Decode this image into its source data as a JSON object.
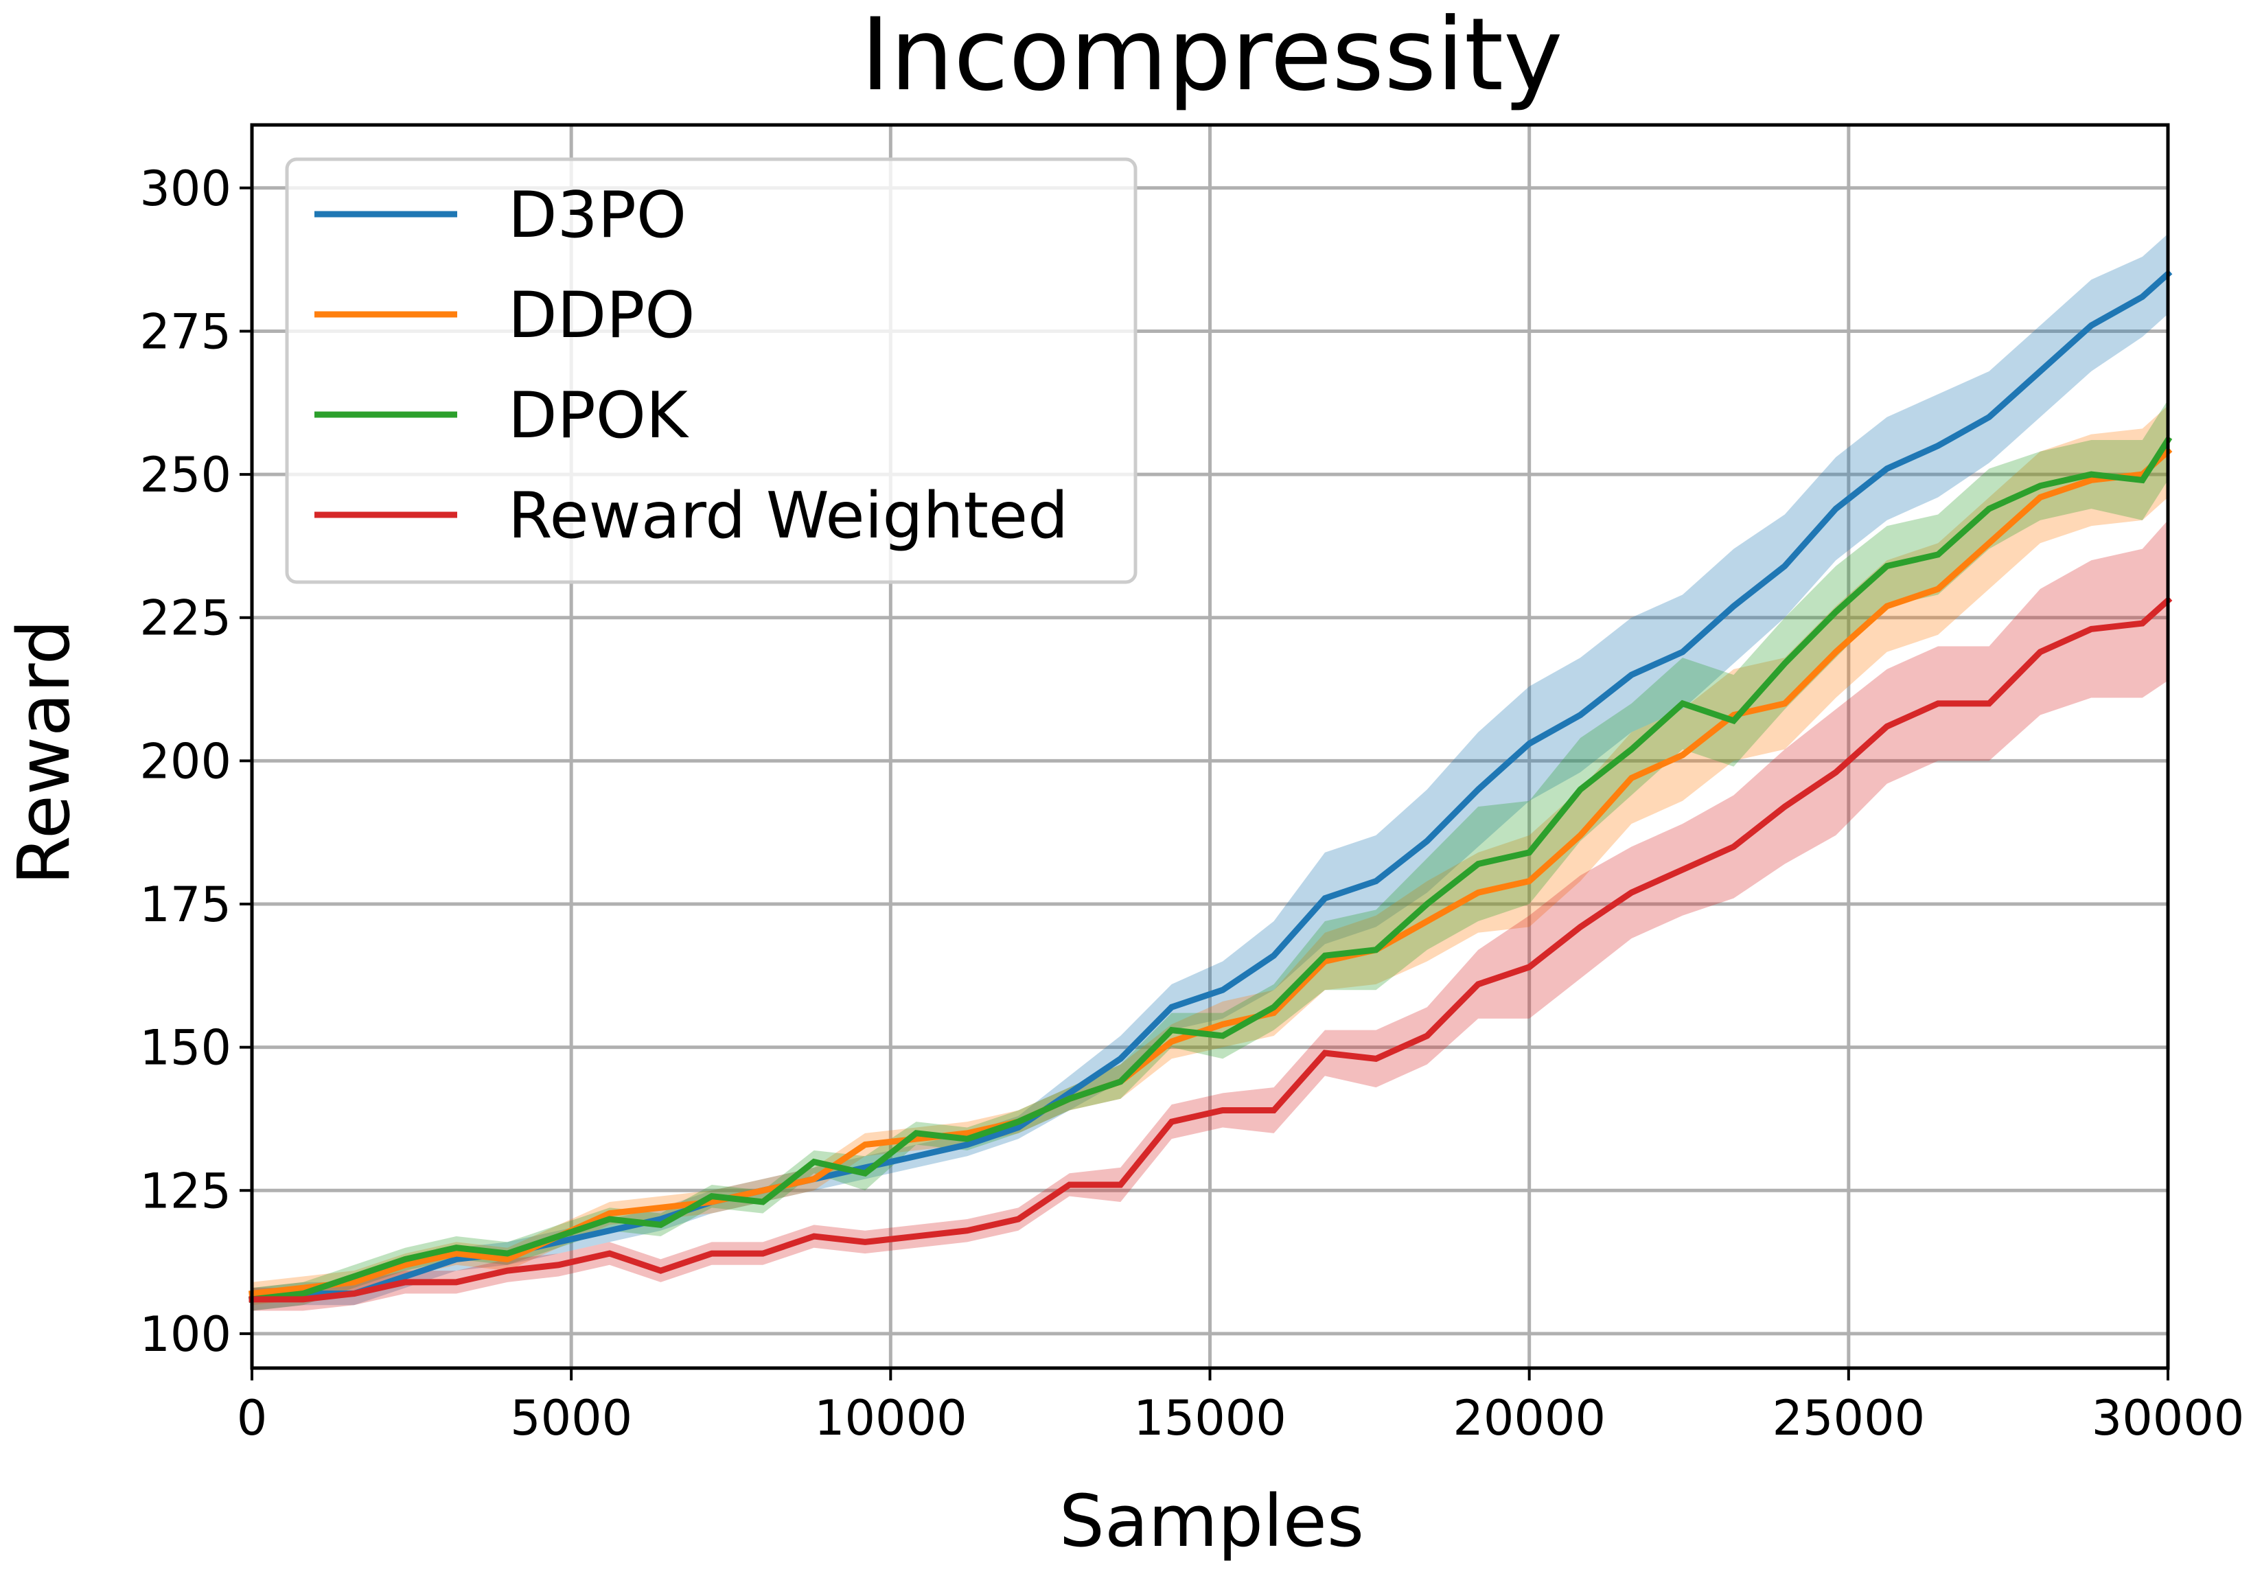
{
  "chart_data": {
    "type": "line",
    "title": "Incompressity",
    "xlabel": "Samples",
    "ylabel": "Reward",
    "xlim": [
      0,
      30000
    ],
    "ylim": [
      94,
      311
    ],
    "xticks": [
      0,
      5000,
      10000,
      15000,
      20000,
      25000,
      30000
    ],
    "yticks": [
      100,
      125,
      150,
      175,
      200,
      225,
      250,
      275,
      300
    ],
    "grid": true,
    "legend": "top-left",
    "x": [
      0,
      800,
      1600,
      2400,
      3200,
      4000,
      4800,
      5600,
      6400,
      7200,
      8000,
      8800,
      9600,
      10400,
      11200,
      12000,
      12800,
      13600,
      14400,
      15200,
      16000,
      16800,
      17600,
      18400,
      19200,
      20000,
      20800,
      21600,
      22400,
      23200,
      24000,
      24800,
      25600,
      26400,
      27200,
      28000,
      28800,
      29600,
      30000
    ],
    "series": [
      {
        "name": "D3PO",
        "color": "#1f77b4",
        "values": [
          106,
          107,
          107,
          110,
          113,
          114,
          116,
          118,
          120,
          123,
          125,
          127,
          129,
          131,
          133,
          136,
          142,
          148,
          157,
          160,
          166,
          176,
          179,
          186,
          195,
          203,
          208,
          215,
          219,
          227,
          234,
          244,
          251,
          255,
          260,
          268,
          276,
          281,
          285
        ],
        "band": [
          2,
          2,
          2,
          2,
          2,
          2,
          2,
          2,
          2,
          2,
          2,
          2,
          2,
          2,
          2,
          2,
          3,
          4,
          4,
          5,
          6,
          8,
          8,
          9,
          10,
          10,
          10,
          10,
          10,
          10,
          9,
          9,
          9,
          9,
          8,
          8,
          8,
          7,
          7
        ]
      },
      {
        "name": "DDPO",
        "color": "#ff7f0e",
        "values": [
          107,
          108,
          109,
          112,
          114,
          113,
          117,
          121,
          122,
          123,
          125,
          127,
          133,
          134,
          135,
          137,
          141,
          144,
          151,
          154,
          156,
          165,
          167,
          172,
          177,
          179,
          187,
          197,
          201,
          208,
          210,
          219,
          227,
          230,
          238,
          246,
          249,
          250,
          254
        ],
        "band": [
          2,
          2,
          2,
          2,
          2,
          2,
          2,
          2,
          2,
          2,
          2,
          2,
          2,
          2,
          2,
          2,
          2,
          3,
          3,
          4,
          4,
          5,
          6,
          7,
          7,
          8,
          8,
          8,
          8,
          8,
          8,
          8,
          8,
          8,
          8,
          8,
          8,
          8,
          8
        ]
      },
      {
        "name": "DPOK",
        "color": "#2ca02c",
        "values": [
          106,
          107,
          110,
          113,
          115,
          114,
          117,
          120,
          119,
          124,
          123,
          130,
          128,
          135,
          134,
          137,
          141,
          144,
          153,
          152,
          157,
          166,
          167,
          175,
          182,
          184,
          195,
          202,
          210,
          207,
          217,
          226,
          234,
          236,
          244,
          248,
          250,
          249,
          256
        ],
        "band": [
          2,
          2,
          2,
          2,
          2,
          2,
          2,
          2,
          2,
          2,
          2,
          2,
          3,
          2,
          2,
          2,
          2,
          3,
          3,
          4,
          4,
          6,
          7,
          8,
          10,
          9,
          9,
          8,
          8,
          8,
          8,
          8,
          7,
          7,
          7,
          6,
          6,
          7,
          7
        ]
      },
      {
        "name": "Reward Weighted",
        "color": "#d62728",
        "values": [
          106,
          106,
          107,
          109,
          109,
          111,
          112,
          114,
          111,
          114,
          114,
          117,
          116,
          117,
          118,
          120,
          126,
          126,
          137,
          139,
          139,
          149,
          148,
          152,
          161,
          164,
          171,
          177,
          181,
          185,
          192,
          198,
          206,
          210,
          210,
          219,
          223,
          224,
          228
        ],
        "band": [
          2,
          2,
          2,
          2,
          2,
          2,
          2,
          2,
          2,
          2,
          2,
          2,
          2,
          2,
          2,
          2,
          2,
          3,
          3,
          3,
          4,
          4,
          5,
          5,
          6,
          9,
          9,
          8,
          8,
          9,
          10,
          11,
          10,
          10,
          10,
          11,
          12,
          13,
          14
        ]
      }
    ]
  }
}
